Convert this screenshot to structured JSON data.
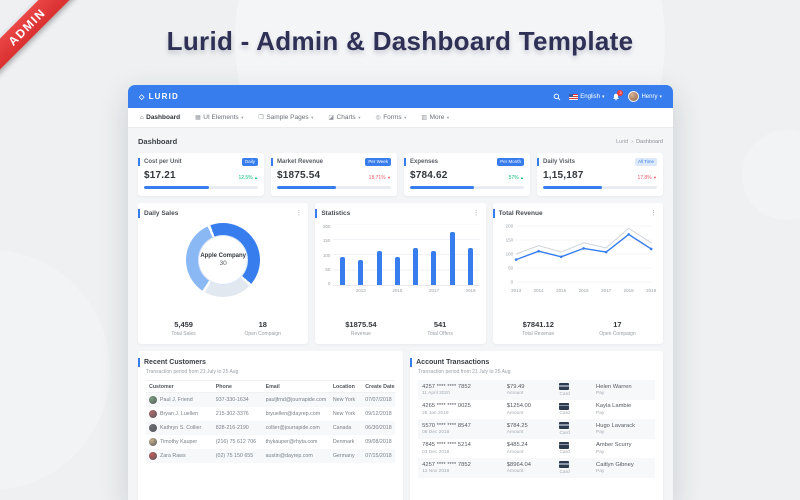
{
  "colors": {
    "accent": "#377dee",
    "navbar": "#377dee",
    "ribbon_red": "#d92f2f",
    "title_navy": "#2e3155",
    "positive_green": "#0bbf78",
    "negative_red": "#f25b6b",
    "donut_blue": "#377dee",
    "donut_light_blue": "#8ab8f4",
    "donut_pale": "#e2e8f0",
    "line_secondary": "#d0d5db"
  },
  "ribbon": {
    "label": "ADMIN"
  },
  "hero_title": "Lurid - Admin & Dashboard Template",
  "navbar": {
    "brand": "LURID",
    "brand_mark": "◇",
    "language": "English",
    "notification_count": "3",
    "username": "Henry"
  },
  "menu": {
    "items": [
      {
        "label": "Dashboard",
        "icon": "home-icon",
        "glyph": "⌂",
        "active": true,
        "caret": false
      },
      {
        "label": "UI Elements",
        "icon": "ui-elements-icon",
        "glyph": "▦",
        "active": false,
        "caret": true
      },
      {
        "label": "Sample Pages",
        "icon": "pages-icon",
        "glyph": "❐",
        "active": false,
        "caret": true
      },
      {
        "label": "Charts",
        "icon": "charts-icon",
        "glyph": "◪",
        "active": false,
        "caret": true
      },
      {
        "label": "Forms",
        "icon": "forms-icon",
        "glyph": "◎",
        "active": false,
        "caret": true
      },
      {
        "label": "More",
        "icon": "more-icon",
        "glyph": "▥",
        "active": false,
        "caret": true
      }
    ]
  },
  "page": {
    "title": "Dashboard",
    "breadcrumb": [
      "Lurid",
      "Dashboard"
    ],
    "breadcrumb_separator": "›"
  },
  "stats": [
    {
      "title": "Cost per Unit",
      "badge": "Daily",
      "badge_style": "solid",
      "value": "$17.21",
      "change": "12.5%",
      "direction": "up",
      "progress": 57
    },
    {
      "title": "Market Revenue",
      "badge": "Per Week",
      "badge_style": "solid",
      "value": "$1875.54",
      "change": "18.71%",
      "direction": "down",
      "progress": 52
    },
    {
      "title": "Expenses",
      "badge": "Per Month",
      "badge_style": "solid",
      "value": "$784.62",
      "change": "57%",
      "direction": "up",
      "progress": 56
    },
    {
      "title": "Daily Visits",
      "badge": "All Time",
      "badge_style": "soft",
      "value": "1,15,187",
      "change": "17.8%",
      "direction": "down",
      "progress": 52
    }
  ],
  "chart_data": {
    "daily_sales": {
      "type": "donut",
      "title": "Daily Sales",
      "center_label": "Apple Company",
      "center_value": "30",
      "start_angle_deg": -20,
      "segments": [
        {
          "name": "primary",
          "value": 43,
          "color": "#377dee"
        },
        {
          "name": "pale",
          "value": 22,
          "color": "#e2e8f0"
        },
        {
          "name": "light",
          "value": 35,
          "color": "#8ab8f4"
        }
      ],
      "footer": [
        {
          "value": "5,459",
          "label": "Total Sales"
        },
        {
          "value": "18",
          "label": "Open Compaign"
        }
      ]
    },
    "statistics": {
      "type": "bar",
      "title": "Statistics",
      "values": [
        90,
        80,
        110,
        90,
        120,
        110,
        170,
        120
      ],
      "x_labels": [
        "2013",
        "2015",
        "2017",
        "2019"
      ],
      "x_label_slots": [
        1,
        3,
        5,
        7
      ],
      "y_ticks": [
        200,
        150,
        100,
        50,
        0
      ],
      "y_max": 200,
      "bar_color": "#377dee",
      "footer": [
        {
          "value": "$1875.54",
          "label": "Revenue"
        },
        {
          "value": "541",
          "label": "Total Offers"
        }
      ]
    },
    "total_revenue": {
      "type": "line",
      "title": "Total Revenue",
      "x_labels": [
        "2013",
        "2014",
        "2015",
        "2016",
        "2017",
        "2018",
        "2019"
      ],
      "y_ticks": [
        200,
        150,
        100,
        50,
        0
      ],
      "y_max": 200,
      "series": [
        {
          "name": "secondary",
          "color": "#d0d5db",
          "dots": false,
          "values": [
            100,
            130,
            107,
            140,
            122,
            192,
            140
          ]
        },
        {
          "name": "primary",
          "color": "#377dee",
          "dots": true,
          "values": [
            80,
            110,
            90,
            120,
            107,
            170,
            118
          ]
        }
      ],
      "footer": [
        {
          "value": "$7841.12",
          "label": "Total Revenue"
        },
        {
          "value": "17",
          "label": "Open Compaign"
        }
      ]
    }
  },
  "recent_customers": {
    "title": "Recent Customers",
    "subtitle": "Transaction period from 21 July to 25 Aug",
    "columns": [
      "Customer",
      "Phone",
      "Email",
      "Location",
      "Create Date"
    ],
    "rows": [
      {
        "name": "Paul J. Friend",
        "phone": "937-330-1634",
        "email": "pauljfrnd@jourrapide.com",
        "location": "New York",
        "date": "07/07/2018",
        "avatar_color": "#7a9e7e"
      },
      {
        "name": "Bryan J. Luellen",
        "phone": "215-302-3376",
        "email": "bryuellen@dayrep.com",
        "location": "New York",
        "date": "09/12/2018",
        "avatar_color": "#b06a6a"
      },
      {
        "name": "Kathryn S. Collier",
        "phone": "828-216-2190",
        "email": "collier@jourrapide.com",
        "location": "Canada",
        "date": "06/30/2018",
        "avatar_color": "#6d6d72"
      },
      {
        "name": "Timothy Kauper",
        "phone": "(216) 75 612 706",
        "email": "thykauper@rhyta.com",
        "location": "Denmark",
        "date": "09/08/2018",
        "avatar_color": "#c9b08a"
      },
      {
        "name": "Zara Raws",
        "phone": "(02) 75 150 655",
        "email": "austin@dayrep.com",
        "location": "Germany",
        "date": "07/15/2018",
        "avatar_color": "#c05a5a"
      }
    ]
  },
  "account_transactions": {
    "title": "Account Transactions",
    "subtitle": "Transaction period from 21 July to 25 Aug",
    "labels": {
      "amount": "Amount",
      "card": "Card",
      "pay": "Pay"
    },
    "rows": [
      {
        "card_number": "4257 **** **** 7852",
        "date": "11 April 2020",
        "amount": "$79.49",
        "name": "Helen Warren"
      },
      {
        "card_number": "4265 **** **** 0025",
        "date": "28 Jan 2019",
        "amount": "$1254.00",
        "name": "Kayla Lambie"
      },
      {
        "card_number": "5570 **** **** 8547",
        "date": "08 Dec 2018",
        "amount": "$784.25",
        "name": "Hugo Lavarack"
      },
      {
        "card_number": "7845 **** **** 5214",
        "date": "03 Dec 2018",
        "amount": "$485.24",
        "name": "Amber Scurry"
      },
      {
        "card_number": "4257 **** **** 7852",
        "date": "12 Nov 2018",
        "amount": "$8964.04",
        "name": "Caitlyn Gibney"
      }
    ]
  }
}
